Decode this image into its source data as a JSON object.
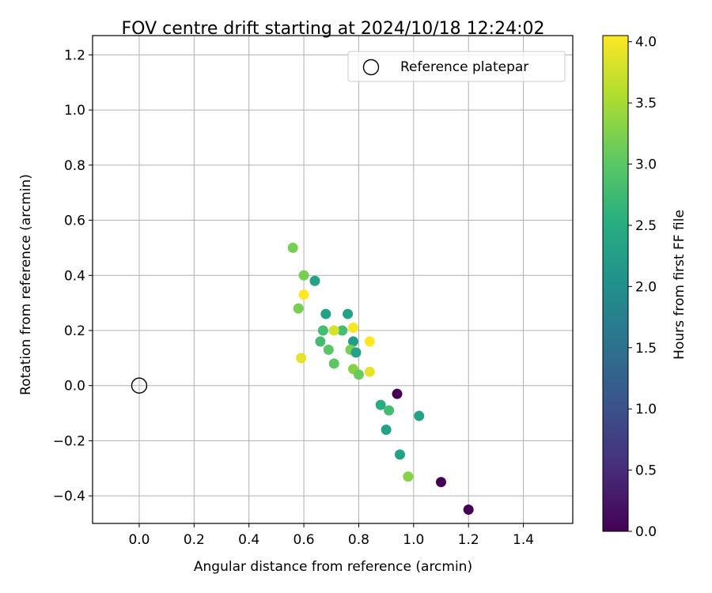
{
  "chart_data": {
    "type": "scatter",
    "title": "FOV centre drift starting at 2024/10/18 12:24:02",
    "xlabel": "Angular distance from reference (arcmin)",
    "ylabel": "Rotation from reference (arcmin)",
    "xlim": [
      -0.17,
      1.58
    ],
    "ylim": [
      -0.5,
      1.27
    ],
    "xticks": [
      0.0,
      0.2,
      0.4,
      0.6,
      0.8,
      1.0,
      1.2,
      1.4
    ],
    "xtick_labels": [
      "0.0",
      "0.2",
      "0.4",
      "0.6",
      "0.8",
      "1.0",
      "1.2",
      "1.4"
    ],
    "yticks": [
      -0.4,
      -0.2,
      0.0,
      0.2,
      0.4,
      0.6,
      0.8,
      1.0,
      1.2
    ],
    "ytick_labels": [
      "−0.4",
      "−0.2",
      "0.0",
      "0.2",
      "0.4",
      "0.6",
      "0.8",
      "1.0",
      "1.2"
    ],
    "grid": true,
    "legend": {
      "placement": "top-right",
      "label": "Reference platepar"
    },
    "reference_point": {
      "x": 0.0,
      "y": 0.0,
      "marker": "open-circle",
      "color": "#000000"
    },
    "colorbar": {
      "label": "Hours from first FF file",
      "colormap": "viridis",
      "range": [
        0.0,
        4.05
      ],
      "ticks": [
        0.0,
        0.5,
        1.0,
        1.5,
        2.0,
        2.5,
        3.0,
        3.5,
        4.0
      ],
      "tick_labels": [
        "0.0",
        "0.5",
        "1.0",
        "1.5",
        "2.0",
        "2.5",
        "3.0",
        "3.5",
        "4.0"
      ]
    },
    "points": [
      {
        "x": 0.94,
        "y": -0.03,
        "c": 0.0
      },
      {
        "x": 1.1,
        "y": -0.35,
        "c": 0.0
      },
      {
        "x": 1.2,
        "y": -0.45,
        "c": 0.0
      },
      {
        "x": 1.02,
        "y": -0.11,
        "c": 2.3
      },
      {
        "x": 0.95,
        "y": -0.25,
        "c": 2.3
      },
      {
        "x": 0.9,
        "y": -0.16,
        "c": 2.3
      },
      {
        "x": 0.88,
        "y": -0.07,
        "c": 2.5
      },
      {
        "x": 0.91,
        "y": -0.09,
        "c": 2.8
      },
      {
        "x": 0.98,
        "y": -0.33,
        "c": 3.3
      },
      {
        "x": 0.56,
        "y": 0.5,
        "c": 3.2
      },
      {
        "x": 0.6,
        "y": 0.4,
        "c": 3.2
      },
      {
        "x": 0.64,
        "y": 0.38,
        "c": 2.3
      },
      {
        "x": 0.6,
        "y": 0.33,
        "c": 4.05
      },
      {
        "x": 0.58,
        "y": 0.28,
        "c": 3.2
      },
      {
        "x": 0.68,
        "y": 0.26,
        "c": 2.3
      },
      {
        "x": 0.76,
        "y": 0.26,
        "c": 2.3
      },
      {
        "x": 0.67,
        "y": 0.2,
        "c": 2.8
      },
      {
        "x": 0.74,
        "y": 0.2,
        "c": 2.8
      },
      {
        "x": 0.71,
        "y": 0.2,
        "c": 3.8
      },
      {
        "x": 0.78,
        "y": 0.21,
        "c": 4.0
      },
      {
        "x": 0.66,
        "y": 0.16,
        "c": 2.8
      },
      {
        "x": 0.78,
        "y": 0.16,
        "c": 2.2
      },
      {
        "x": 0.84,
        "y": 0.16,
        "c": 4.05
      },
      {
        "x": 0.69,
        "y": 0.13,
        "c": 3.0
      },
      {
        "x": 0.77,
        "y": 0.13,
        "c": 3.2
      },
      {
        "x": 0.79,
        "y": 0.12,
        "c": 2.3
      },
      {
        "x": 0.59,
        "y": 0.1,
        "c": 3.9
      },
      {
        "x": 0.71,
        "y": 0.08,
        "c": 3.0
      },
      {
        "x": 0.78,
        "y": 0.06,
        "c": 3.3
      },
      {
        "x": 0.8,
        "y": 0.04,
        "c": 3.1
      },
      {
        "x": 0.84,
        "y": 0.05,
        "c": 3.9
      }
    ]
  }
}
